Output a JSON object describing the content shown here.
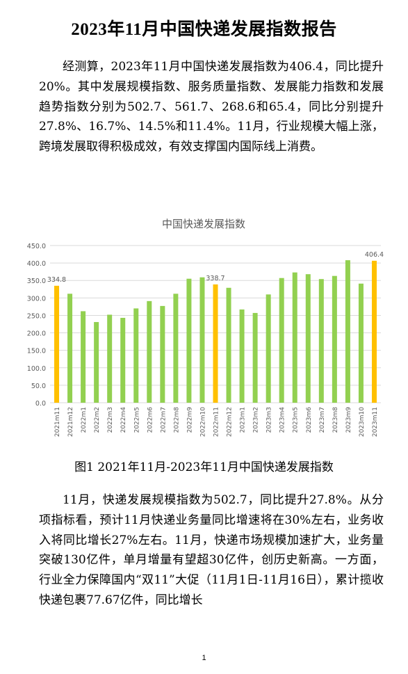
{
  "doc": {
    "title": "2023年11月中国快递发展指数报告",
    "paragraph1": "经测算，2023年11月中国快递发展指数为406.4，同比提升20%。其中发展规模指数、服务质量指数、发展能力指数和发展趋势指数分别为502.7、561.7、268.6和65.4，同比分别提升27.8%、16.7%、14.5%和11.4%。11月，行业规模大幅上涨，跨境发展取得积极成效，有效支撑国内国际线上消费。",
    "caption": "图1 2021年11月-2023年11月中国快递发展指数",
    "paragraph2": "11月，快递发展规模指数为502.7，同比提升27.8%。从分项指标看，预计11月快递业务量同比增速将在30%左右，业务收入将同比增长27%左右。11月，快递市场规模加速扩大，业务量突破130亿件，单月增量有望超30亿件，创历史新高。一方面，行业全力保障国内“双11”大促（11月1日-11月16日），累计揽收快递包裹77.67亿件，同比增长",
    "page_number": "1"
  },
  "chart_data": {
    "type": "bar",
    "title": "中国快递发展指数",
    "xlabel": "",
    "ylabel": "",
    "ylim": [
      0,
      450
    ],
    "yticks": [
      "0.0",
      "50.0",
      "100.0",
      "150.0",
      "200.0",
      "250.0",
      "300.0",
      "350.0",
      "400.0",
      "450.0"
    ],
    "grid": true,
    "legend": "none",
    "categories": [
      "2021m11",
      "2021m12",
      "2022m1",
      "2022m2",
      "2022m3",
      "2022m4",
      "2022m5",
      "2022m6",
      "2022m7",
      "2022m8",
      "2022m9",
      "2022m10",
      "2022m11",
      "2022m12",
      "2023m1",
      "2023m2",
      "2023m3",
      "2023m4",
      "2023m5",
      "2023m6",
      "2023m7",
      "2023m8",
      "2023m9",
      "2023m10",
      "2023m11"
    ],
    "values": [
      334.8,
      312,
      262,
      231,
      252,
      243,
      270,
      291,
      277,
      312,
      355,
      359,
      338.7,
      329,
      267,
      257,
      310,
      357,
      373,
      368,
      354,
      363,
      408,
      341,
      406.4
    ],
    "highlighted": [
      0,
      12,
      24
    ],
    "data_labels": [
      {
        "index": 0,
        "text": "334.8"
      },
      {
        "index": 12,
        "text": "338.7"
      },
      {
        "index": 24,
        "text": "406.4"
      }
    ],
    "colors": {
      "bar": "#92D050",
      "highlight": "#FFC000",
      "grid": "#D9D9D9",
      "axis_text": "#595959",
      "title": "#595959"
    }
  }
}
